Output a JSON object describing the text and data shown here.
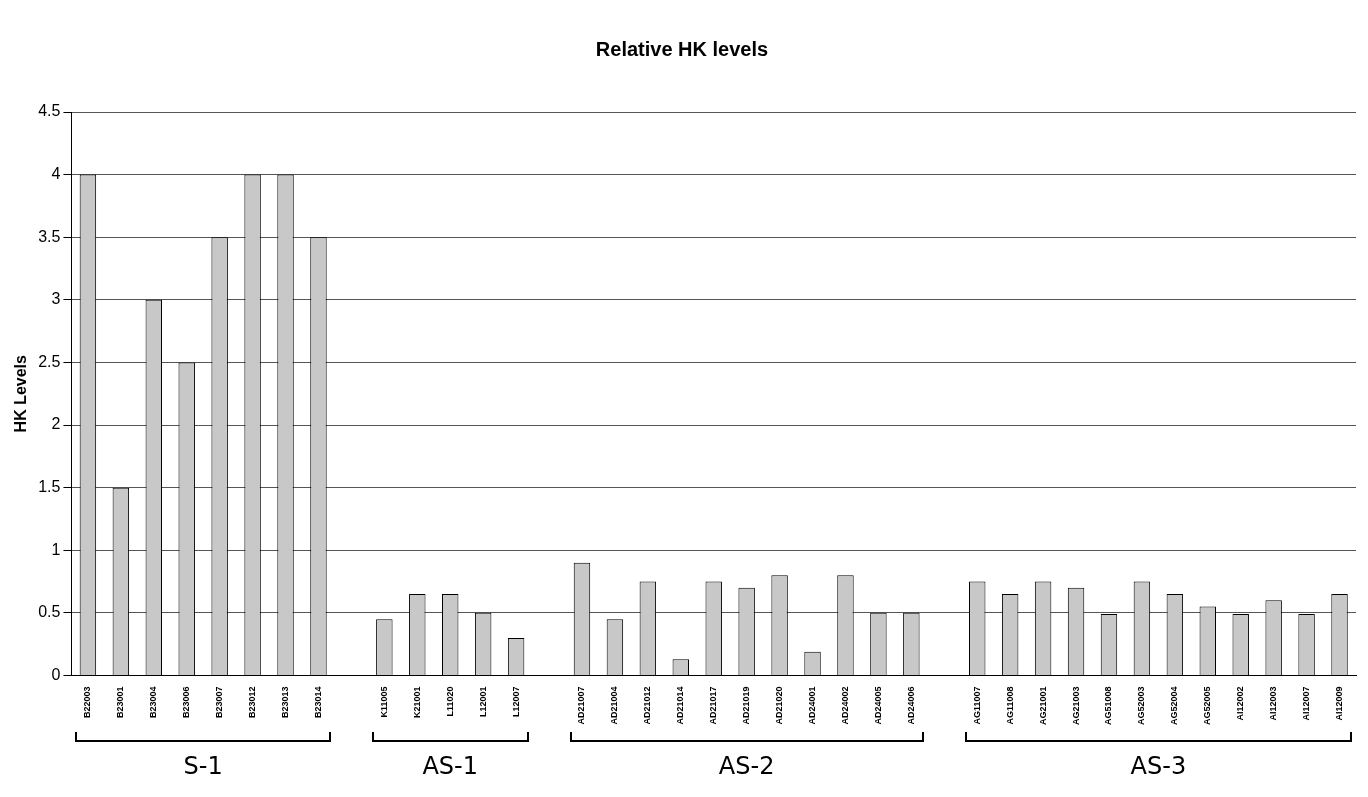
{
  "chart_data": {
    "type": "bar",
    "title": "Relative HK levels",
    "ylabel": "HK Levels",
    "categories": [
      "B22003",
      "B23001",
      "B23004",
      "B23006",
      "B23007",
      "B23012",
      "B23013",
      "B23014",
      null,
      "K11005",
      "K21001",
      "L11020",
      "L12001",
      "L12007",
      null,
      "AD21007",
      "AD21004",
      "AD21012",
      "AD21014",
      "AD21017",
      "AD21019",
      "AD21020",
      "AD24001",
      "AD24002",
      "AD24005",
      "AD24006",
      null,
      "AG11007",
      "AG11008",
      "AG21001",
      "AG21003",
      "AG51008",
      "AG52003",
      "AG52004",
      "AG52005",
      "AI12002",
      "AI12003",
      "AI12007",
      "AI12009"
    ],
    "values": [
      4,
      1.5,
      3,
      2.5,
      3.5,
      4,
      4,
      3.5,
      null,
      0.45,
      0.65,
      0.65,
      0.5,
      0.3,
      null,
      0.9,
      0.45,
      0.75,
      0.13,
      0.75,
      0.7,
      0.8,
      0.19,
      0.8,
      0.5,
      0.5,
      null,
      0.75,
      0.65,
      0.75,
      0.7,
      0.49,
      0.75,
      0.65,
      0.55,
      0.49,
      0.6,
      0.49,
      0.65
    ],
    "color": "#c8c8c8",
    "ylim": [
      0,
      4.5
    ],
    "yticks": [
      0,
      0.5,
      1,
      1.5,
      2,
      2.5,
      3,
      3.5,
      4,
      4.5
    ],
    "grid": "y",
    "legend": false,
    "annotations": [
      "S-1",
      "AS-1",
      "AS-2",
      "AS-3"
    ]
  }
}
